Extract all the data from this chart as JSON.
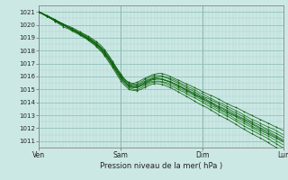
{
  "xlabel": "Pression niveau de la mer( hPa )",
  "bg_color": "#cce8e4",
  "grid_minor_color": "#aad4cc",
  "grid_major_color": "#88bbb0",
  "ylim": [
    1010.5,
    1021.5
  ],
  "yticks": [
    1011,
    1012,
    1013,
    1014,
    1015,
    1016,
    1017,
    1018,
    1019,
    1020,
    1021
  ],
  "xtick_labels": [
    "Ven",
    "Sam",
    "Dim",
    "Lun"
  ],
  "xtick_positions": [
    0.0,
    0.333,
    0.667,
    1.0
  ],
  "num_lines": 9,
  "line_colors": [
    "#0a5a0a",
    "#0d6a0d",
    "#1a7a1a",
    "#0a5a0a",
    "#0d6a0d",
    "#146414",
    "#0f5f0f",
    "#187018",
    "#0c5c0c"
  ]
}
